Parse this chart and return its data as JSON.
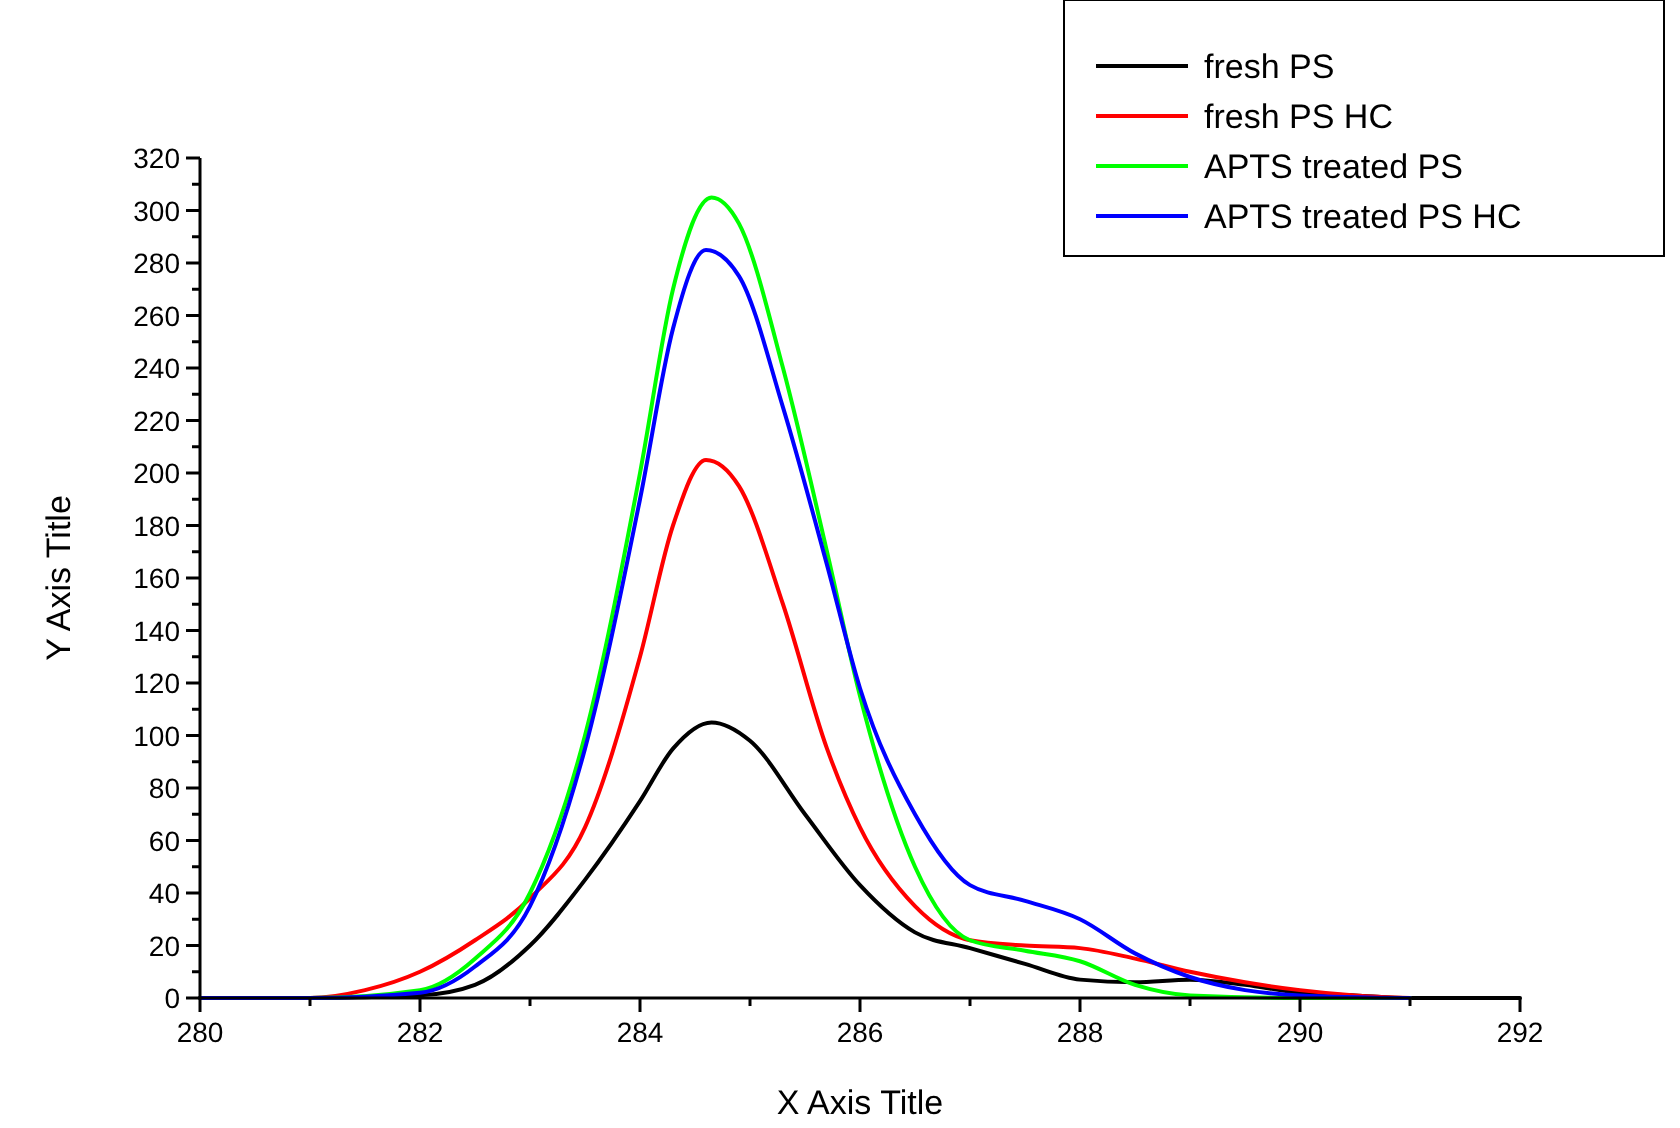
{
  "chart_data": {
    "type": "line",
    "xlabel": "X Axis Title",
    "ylabel": "Y Axis Title",
    "xlim": [
      280,
      292
    ],
    "ylim": [
      0,
      320
    ],
    "xticks": [
      280,
      {
        "value": 281,
        "label": null
      },
      282,
      {
        "value": 283,
        "label": null
      },
      284,
      {
        "value": 285,
        "label": null
      },
      286,
      {
        "value": 287,
        "label": null
      },
      288,
      {
        "value": 289,
        "label": null
      },
      290,
      {
        "value": 291,
        "label": null
      },
      292
    ],
    "yticks": [
      0,
      {
        "value": 10,
        "label": null
      },
      20,
      {
        "value": 30,
        "label": null
      },
      40,
      {
        "value": 50,
        "label": null
      },
      60,
      {
        "value": 70,
        "label": null
      },
      80,
      {
        "value": 90,
        "label": null
      },
      100,
      {
        "value": 110,
        "label": null
      },
      120,
      {
        "value": 130,
        "label": null
      },
      140,
      {
        "value": 150,
        "label": null
      },
      160,
      {
        "value": 170,
        "label": null
      },
      180,
      {
        "value": 190,
        "label": null
      },
      200,
      {
        "value": 210,
        "label": null
      },
      220,
      {
        "value": 230,
        "label": null
      },
      240,
      {
        "value": 250,
        "label": null
      },
      260,
      {
        "value": 270,
        "label": null
      },
      280,
      {
        "value": 290,
        "label": null
      },
      300,
      {
        "value": 310,
        "label": null
      },
      320
    ],
    "legend": "top right",
    "grid": false,
    "marker": "none",
    "line_style": "solid",
    "series": [
      {
        "name": "fresh PS",
        "color": "#000000",
        "x": [
          280,
          281,
          282,
          282.5,
          283,
          283.5,
          284,
          284.3,
          284.65,
          285,
          285.5,
          286,
          286.5,
          287,
          287.5,
          288,
          288.5,
          289,
          289.5,
          290,
          290.5,
          291,
          292
        ],
        "values": [
          0,
          0,
          1,
          5,
          20,
          45,
          75,
          95,
          105,
          98,
          70,
          43,
          25,
          19,
          13,
          7,
          6,
          7,
          5,
          2,
          1,
          0,
          0
        ]
      },
      {
        "name": "fresh PS HC",
        "color": "#ff0000",
        "x": [
          280,
          281,
          281.5,
          282,
          282.5,
          283,
          283.5,
          284,
          284.3,
          284.6,
          284.9,
          285.3,
          285.7,
          286,
          286.5,
          287,
          287.5,
          288,
          288.5,
          289,
          289.5,
          290,
          290.5,
          291
        ],
        "values": [
          0,
          0,
          3,
          10,
          22,
          38,
          65,
          130,
          180,
          205,
          195,
          150,
          95,
          65,
          35,
          22,
          20,
          19,
          15,
          10,
          6,
          3,
          1,
          0
        ]
      },
      {
        "name": "APTS treated PS",
        "color": "#00ff00",
        "x": [
          280,
          281,
          282,
          282.5,
          283,
          283.5,
          284,
          284.3,
          284.65,
          284.9,
          285.3,
          285.7,
          286,
          286.5,
          287,
          287.5,
          288,
          288.5,
          289,
          290,
          291
        ],
        "values": [
          0,
          0,
          3,
          15,
          40,
          100,
          200,
          270,
          305,
          295,
          240,
          170,
          115,
          50,
          22,
          18,
          14,
          5,
          1,
          0,
          0
        ]
      },
      {
        "name": "APTS treated PS HC",
        "color": "#0000ff",
        "x": [
          280,
          281,
          282,
          282.5,
          283,
          283.5,
          284,
          284.3,
          284.6,
          284.9,
          285.3,
          285.7,
          286,
          286.5,
          287,
          287.5,
          288,
          288.5,
          289,
          289.5,
          290,
          291
        ],
        "values": [
          0,
          0,
          2,
          12,
          35,
          95,
          190,
          255,
          285,
          275,
          225,
          165,
          118,
          70,
          43,
          37,
          30,
          17,
          8,
          3,
          1,
          0
        ]
      }
    ]
  }
}
